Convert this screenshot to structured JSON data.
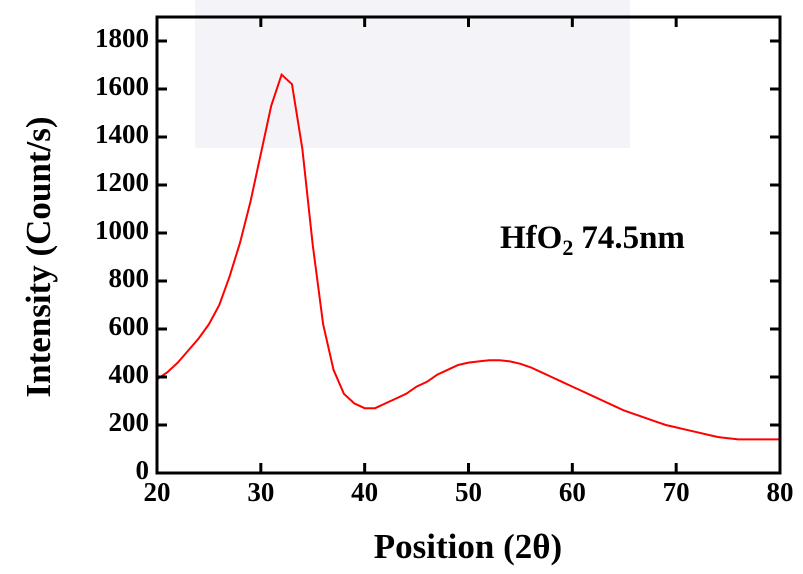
{
  "chart_data": {
    "type": "line",
    "y_label": "Intensity (Count/s)",
    "x_label": "Position (2θ)",
    "annotation": [
      "HfO",
      "2",
      "74.5nm"
    ],
    "x": [
      20,
      21,
      22,
      23,
      24,
      25,
      26,
      27,
      28,
      29,
      30,
      31,
      32,
      33,
      34,
      35,
      36,
      37,
      38,
      39,
      40,
      41,
      42,
      43,
      44,
      45,
      46,
      47,
      48,
      49,
      50,
      51,
      52,
      53,
      54,
      55,
      56,
      57,
      58,
      59,
      60,
      61,
      62,
      63,
      64,
      65,
      66,
      67,
      68,
      69,
      70,
      71,
      72,
      73,
      74,
      75,
      76,
      77,
      78,
      79,
      80
    ],
    "values": [
      390,
      420,
      460,
      510,
      560,
      620,
      700,
      820,
      960,
      1130,
      1330,
      1530,
      1660,
      1620,
      1350,
      950,
      620,
      430,
      330,
      290,
      270,
      270,
      290,
      310,
      330,
      360,
      380,
      410,
      430,
      450,
      460,
      465,
      470,
      470,
      465,
      455,
      440,
      420,
      400,
      380,
      360,
      340,
      320,
      300,
      280,
      260,
      245,
      230,
      215,
      200,
      190,
      180,
      170,
      160,
      150,
      145,
      140,
      140,
      140,
      140,
      140
    ],
    "color": "#ff0000",
    "xlim": [
      20,
      80
    ],
    "xticks": [
      20,
      30,
      40,
      50,
      60,
      70,
      80
    ],
    "ylim": [
      0,
      1800
    ],
    "yticks": [
      0,
      200,
      400,
      600,
      800,
      1000,
      1200,
      1400,
      1600,
      1800
    ]
  }
}
